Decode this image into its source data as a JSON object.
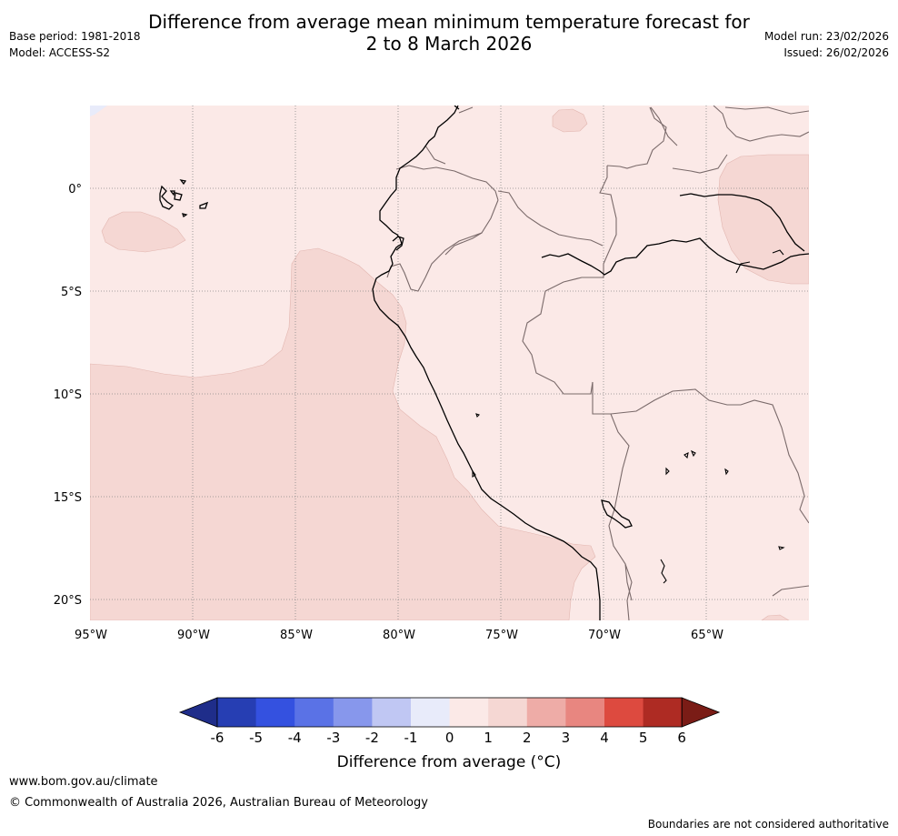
{
  "header": {
    "title_line1": "Difference from average mean minimum temperature forecast for",
    "title_line2": "2 to 8 March 2026",
    "base_period": "Base period: 1981-2018",
    "model": "Model: ACCESS-S2",
    "model_run": "Model run: 23/02/2026",
    "issued": "Issued: 26/02/2026"
  },
  "map": {
    "lat_labels": [
      "0°",
      "5°S",
      "10°S",
      "15°S",
      "20°S"
    ],
    "lon_labels": [
      "95°W",
      "90°W",
      "85°W",
      "80°W",
      "75°W",
      "70°W",
      "65°W"
    ],
    "colors": {
      "zero_to_one": "#fbe9e7",
      "one_to_two": "#f5d7d3",
      "land_border": "#7a6a6a",
      "coast": "#000000",
      "grid": "#888888"
    }
  },
  "colorbar": {
    "labels": [
      "-6",
      "-5",
      "-4",
      "-3",
      "-2",
      "-1",
      "0",
      "1",
      "2",
      "3",
      "4",
      "5",
      "6"
    ],
    "colors": [
      "#1f2d8a",
      "#263eb3",
      "#3451e0",
      "#5a72e6",
      "#8797ec",
      "#c0c7f3",
      "#e8ebfa",
      "#fbe9e7",
      "#f5d7d3",
      "#eeaca7",
      "#e88680",
      "#dd4a3f",
      "#ae2b23",
      "#7a1c16"
    ],
    "title": "Difference from average (°C)"
  },
  "footer": {
    "url": "www.bom.gov.au/climate",
    "copyright": "© Commonwealth of Australia 2026, Australian Bureau of Meteorology",
    "disclaimer": "Boundaries are not considered authoritative"
  }
}
